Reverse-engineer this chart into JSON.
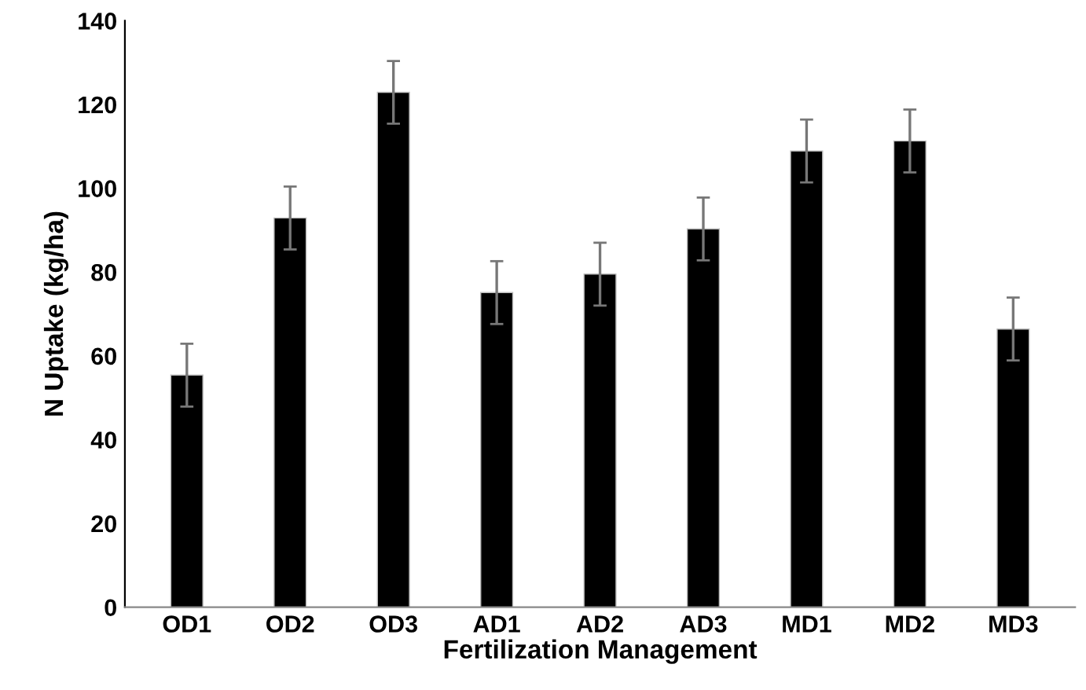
{
  "chart_data": {
    "type": "bar",
    "xlabel": "Fertilization Management",
    "ylabel": "N Uptake (kg/ha)",
    "categories": [
      "OD1",
      "OD2",
      "OD3",
      "AD1",
      "AD2",
      "AD3",
      "MD1",
      "MD2",
      "MD3"
    ],
    "values": [
      55.4,
      92.9,
      122.9,
      75.1,
      79.5,
      90.3,
      108.9,
      111.3,
      66.4
    ],
    "errors": [
      7.5,
      7.5,
      7.5,
      7.5,
      7.5,
      7.5,
      7.5,
      7.5,
      7.5
    ],
    "color": "#000000",
    "ylim": [
      0,
      140
    ],
    "yticks": [
      0,
      20,
      40,
      60,
      80,
      100,
      120,
      140
    ],
    "grid": false,
    "legend": false
  }
}
